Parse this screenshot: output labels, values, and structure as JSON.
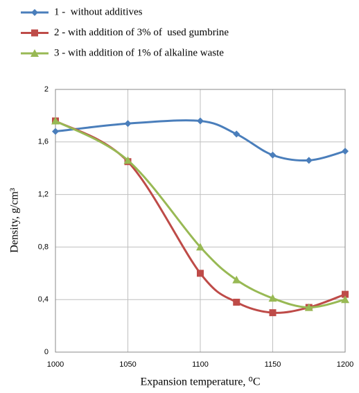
{
  "chart_data": {
    "type": "line",
    "x_label": "Expansion temperature, ⁰C",
    "y_label": "Density, g/cm³",
    "x": [
      1000,
      1050,
      1100,
      1125,
      1150,
      1175,
      1200
    ],
    "series": [
      {
        "name": "1 -  without additives",
        "color": "#4a7ebb",
        "marker": "diamond",
        "values": [
          1.68,
          1.74,
          1.76,
          1.66,
          1.5,
          1.46,
          1.53
        ]
      },
      {
        "name": "2 - with addition of 3% of  used gumbrine",
        "color": "#be4b48",
        "marker": "square",
        "values": [
          1.76,
          1.45,
          0.6,
          0.38,
          0.3,
          0.34,
          0.44
        ]
      },
      {
        "name": "3 - with addition of 1% of alkaline waste",
        "color": "#98b954",
        "marker": "triangle",
        "values": [
          1.76,
          1.46,
          0.8,
          0.55,
          0.41,
          0.34,
          0.4
        ]
      }
    ],
    "xlim": [
      1000,
      1200
    ],
    "xticks": [
      1000,
      1050,
      1100,
      1150,
      1200
    ],
    "ylim": [
      0,
      2
    ],
    "yticks": [
      0,
      {
        "value": 0.4,
        "label": "0,4"
      },
      {
        "value": 0.8,
        "label": "0,8"
      },
      {
        "value": 1.2,
        "label": "1,2"
      },
      {
        "value": 1.6,
        "label": "1,6"
      },
      2
    ],
    "grid": true,
    "smooth": true,
    "legend": "top"
  }
}
